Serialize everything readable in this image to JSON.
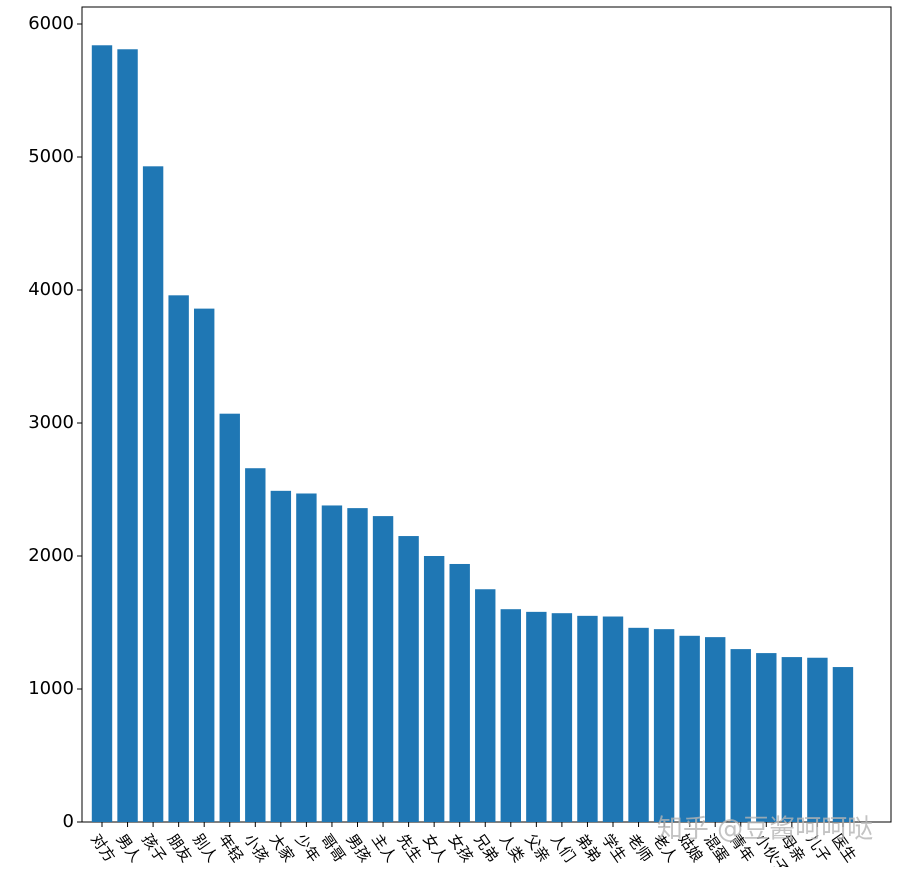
{
  "chart_data": {
    "type": "bar",
    "categories": [
      "对方",
      "男人",
      "孩子",
      "朋友",
      "别人",
      "年轻",
      "小孩",
      "大家",
      "少年",
      "哥哥",
      "男孩",
      "主人",
      "先生",
      "女人",
      "女孩",
      "兄弟",
      "人类",
      "父亲",
      "人们",
      "弟弟",
      "学生",
      "老师",
      "老人",
      "姑娘",
      "混蛋",
      "青年",
      "小伙子",
      "母亲",
      "儿子",
      "医生"
    ],
    "values": [
      5840,
      5810,
      4930,
      3960,
      3860,
      3070,
      2660,
      2490,
      2470,
      2380,
      2360,
      2300,
      2150,
      2000,
      1940,
      1750,
      1600,
      1580,
      1570,
      1550,
      1545,
      1460,
      1450,
      1400,
      1390,
      1300,
      1270,
      1240,
      1235,
      1165
    ],
    "color": "#1f77b4",
    "ylim": [
      0,
      6000
    ],
    "yticks": [
      0,
      1000,
      2000,
      3000,
      4000,
      5000,
      6000
    ],
    "watermark": "知乎 @豆酱呵呵哒"
  }
}
